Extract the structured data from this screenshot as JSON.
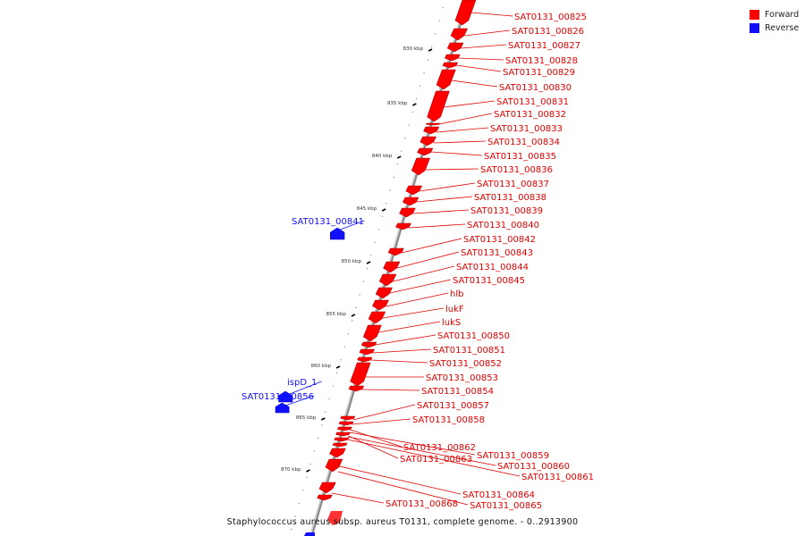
{
  "legend": {
    "forward_label": "Forward",
    "reverse_label": "Reverse",
    "forward_color": "#ff0000",
    "reverse_color": "#1010ff"
  },
  "caption": "Staphylococcus aureus subsp. aureus T0131, complete genome. - 0..2913900",
  "scale": {
    "unit": "kbp",
    "ticks": [
      {
        "value": 830,
        "label": "830 kbp"
      },
      {
        "value": 835,
        "label": "835 kbp"
      },
      {
        "value": 840,
        "label": "840 kbp"
      },
      {
        "value": 845,
        "label": "845 kbp"
      },
      {
        "value": 850,
        "label": "850 kbp"
      },
      {
        "value": 855,
        "label": "855 kbp"
      },
      {
        "value": 860,
        "label": "860 kbp"
      },
      {
        "value": 865,
        "label": "865 kbp"
      },
      {
        "value": 870,
        "label": "870 kbp"
      }
    ]
  },
  "genes": [
    {
      "name": "SAT0131_00825",
      "strand": "forward"
    },
    {
      "name": "SAT0131_00826",
      "strand": "forward"
    },
    {
      "name": "SAT0131_00827",
      "strand": "forward"
    },
    {
      "name": "SAT0131_00828",
      "strand": "forward"
    },
    {
      "name": "SAT0131_00829",
      "strand": "forward"
    },
    {
      "name": "SAT0131_00830",
      "strand": "forward"
    },
    {
      "name": "SAT0131_00831",
      "strand": "forward"
    },
    {
      "name": "SAT0131_00832",
      "strand": "forward"
    },
    {
      "name": "SAT0131_00833",
      "strand": "forward"
    },
    {
      "name": "SAT0131_00834",
      "strand": "forward"
    },
    {
      "name": "SAT0131_00835",
      "strand": "forward"
    },
    {
      "name": "SAT0131_00836",
      "strand": "forward"
    },
    {
      "name": "SAT0131_00837",
      "strand": "forward"
    },
    {
      "name": "SAT0131_00838",
      "strand": "forward"
    },
    {
      "name": "SAT0131_00839",
      "strand": "forward"
    },
    {
      "name": "SAT0131_00840",
      "strand": "forward"
    },
    {
      "name": "SAT0131_00841",
      "strand": "reverse"
    },
    {
      "name": "SAT0131_00842",
      "strand": "forward"
    },
    {
      "name": "SAT0131_00843",
      "strand": "forward"
    },
    {
      "name": "SAT0131_00844",
      "strand": "forward"
    },
    {
      "name": "SAT0131_00845",
      "strand": "forward"
    },
    {
      "name": "hlb",
      "strand": "forward"
    },
    {
      "name": "lukF",
      "strand": "forward"
    },
    {
      "name": "lukS",
      "strand": "forward"
    },
    {
      "name": "SAT0131_00850",
      "strand": "forward"
    },
    {
      "name": "SAT0131_00851",
      "strand": "forward"
    },
    {
      "name": "SAT0131_00852",
      "strand": "forward"
    },
    {
      "name": "SAT0131_00853",
      "strand": "forward"
    },
    {
      "name": "SAT0131_00854",
      "strand": "forward"
    },
    {
      "name": "ispD_1",
      "strand": "reverse"
    },
    {
      "name": "SAT0131_00856",
      "strand": "reverse"
    },
    {
      "name": "SAT0131_00857",
      "strand": "forward"
    },
    {
      "name": "SAT0131_00858",
      "strand": "forward"
    },
    {
      "name": "SAT0131_00862",
      "strand": "forward"
    },
    {
      "name": "SAT0131_00863",
      "strand": "forward"
    },
    {
      "name": "SAT0131_00859",
      "strand": "forward"
    },
    {
      "name": "SAT0131_00860",
      "strand": "forward"
    },
    {
      "name": "SAT0131_00861",
      "strand": "forward"
    },
    {
      "name": "SAT0131_00864",
      "strand": "forward"
    },
    {
      "name": "SAT0131_00865",
      "strand": "forward"
    },
    {
      "name": "SAT0131_00868",
      "strand": "forward"
    }
  ]
}
